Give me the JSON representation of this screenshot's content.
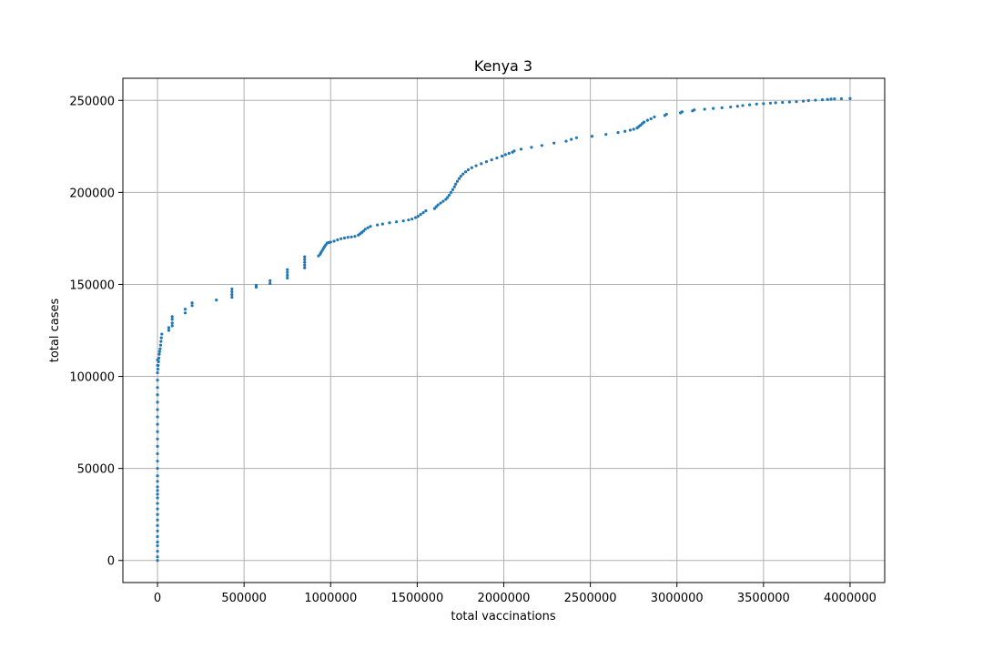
{
  "chart_data": {
    "type": "scatter",
    "title": "Kenya 3",
    "xlabel": "total vaccinations",
    "ylabel": "total cases",
    "xlim": [
      -200000,
      4200000
    ],
    "ylim": [
      -12000,
      262000
    ],
    "grid": true,
    "x_ticks": [
      0,
      500000,
      1000000,
      1500000,
      2000000,
      2500000,
      3000000,
      3500000,
      4000000
    ],
    "x_tick_labels": [
      "0",
      "500000",
      "1000000",
      "1500000",
      "2000000",
      "2500000",
      "3000000",
      "3500000",
      "4000000"
    ],
    "y_ticks": [
      0,
      50000,
      100000,
      150000,
      200000,
      250000
    ],
    "y_tick_labels": [
      "0",
      "50000",
      "100000",
      "150000",
      "200000",
      "250000"
    ],
    "color": "#1f77b4",
    "points": [
      [
        0,
        0
      ],
      [
        0,
        2000
      ],
      [
        0,
        5000
      ],
      [
        0,
        8000
      ],
      [
        0,
        10000
      ],
      [
        0,
        13000
      ],
      [
        0,
        16000
      ],
      [
        0,
        19000
      ],
      [
        0,
        22000
      ],
      [
        0,
        25000
      ],
      [
        0,
        28000
      ],
      [
        0,
        31000
      ],
      [
        0,
        34000
      ],
      [
        0,
        36000
      ],
      [
        0,
        38000
      ],
      [
        0,
        40000
      ],
      [
        0,
        43000
      ],
      [
        0,
        46000
      ],
      [
        0,
        50000
      ],
      [
        0,
        54000
      ],
      [
        0,
        58000
      ],
      [
        0,
        62000
      ],
      [
        0,
        66000
      ],
      [
        0,
        70000
      ],
      [
        0,
        74000
      ],
      [
        0,
        78000
      ],
      [
        0,
        82000
      ],
      [
        0,
        86000
      ],
      [
        0,
        90000
      ],
      [
        0,
        94000
      ],
      [
        0,
        98000
      ],
      [
        0,
        102000
      ],
      [
        0,
        106000
      ],
      [
        0,
        109000
      ],
      [
        2000,
        104000
      ],
      [
        4000,
        106000
      ],
      [
        6000,
        108000
      ],
      [
        8000,
        110000
      ],
      [
        10000,
        112000
      ],
      [
        12000,
        113500
      ],
      [
        15000,
        115000
      ],
      [
        18000,
        117000
      ],
      [
        20000,
        119000
      ],
      [
        22000,
        121000
      ],
      [
        25000,
        123000
      ],
      [
        65000,
        125000
      ],
      [
        65000,
        126500
      ],
      [
        85000,
        127500
      ],
      [
        85000,
        129000
      ],
      [
        85000,
        131000
      ],
      [
        85000,
        132500
      ],
      [
        160000,
        134500
      ],
      [
        160000,
        136500
      ],
      [
        200000,
        138500
      ],
      [
        200000,
        140000
      ],
      [
        340000,
        141500
      ],
      [
        430000,
        143000
      ],
      [
        430000,
        144500
      ],
      [
        430000,
        146000
      ],
      [
        430000,
        147500
      ],
      [
        570000,
        148500
      ],
      [
        570000,
        149500
      ],
      [
        650000,
        150500
      ],
      [
        650000,
        152000
      ],
      [
        750000,
        153500
      ],
      [
        750000,
        155000
      ],
      [
        750000,
        156500
      ],
      [
        750000,
        158000
      ],
      [
        850000,
        159000
      ],
      [
        850000,
        160500
      ],
      [
        850000,
        162000
      ],
      [
        850000,
        163500
      ],
      [
        850000,
        165000
      ],
      [
        930000,
        165500
      ],
      [
        940000,
        166500
      ],
      [
        945000,
        167500
      ],
      [
        952000,
        168500
      ],
      [
        958000,
        169500
      ],
      [
        965000,
        170500
      ],
      [
        972000,
        171500
      ],
      [
        980000,
        172500
      ],
      [
        990000,
        172800
      ],
      [
        1000000,
        173000
      ],
      [
        1020000,
        173500
      ],
      [
        1040000,
        174200
      ],
      [
        1060000,
        174800
      ],
      [
        1080000,
        175200
      ],
      [
        1100000,
        175600
      ],
      [
        1120000,
        175800
      ],
      [
        1140000,
        176100
      ],
      [
        1160000,
        176800
      ],
      [
        1170000,
        177500
      ],
      [
        1180000,
        178300
      ],
      [
        1190000,
        179000
      ],
      [
        1200000,
        180000
      ],
      [
        1215000,
        180800
      ],
      [
        1230000,
        181500
      ],
      [
        1270000,
        182300
      ],
      [
        1300000,
        182800
      ],
      [
        1340000,
        183500
      ],
      [
        1380000,
        184000
      ],
      [
        1420000,
        184500
      ],
      [
        1450000,
        185000
      ],
      [
        1470000,
        185500
      ],
      [
        1490000,
        186300
      ],
      [
        1505000,
        187000
      ],
      [
        1520000,
        188000
      ],
      [
        1535000,
        189000
      ],
      [
        1550000,
        190000
      ],
      [
        1600000,
        191200
      ],
      [
        1610000,
        192200
      ],
      [
        1620000,
        193200
      ],
      [
        1635000,
        194200
      ],
      [
        1650000,
        195200
      ],
      [
        1665000,
        196200
      ],
      [
        1675000,
        197200
      ],
      [
        1685000,
        198500
      ],
      [
        1695000,
        200000
      ],
      [
        1705000,
        201500
      ],
      [
        1715000,
        203000
      ],
      [
        1722000,
        204500
      ],
      [
        1732000,
        206000
      ],
      [
        1742000,
        207500
      ],
      [
        1752000,
        208800
      ],
      [
        1765000,
        210000
      ],
      [
        1780000,
        211200
      ],
      [
        1795000,
        212300
      ],
      [
        1815000,
        213400
      ],
      [
        1840000,
        214500
      ],
      [
        1870000,
        215600
      ],
      [
        1900000,
        216700
      ],
      [
        1930000,
        217700
      ],
      [
        1960000,
        218700
      ],
      [
        1990000,
        219700
      ],
      [
        2010000,
        220500
      ],
      [
        2030000,
        221200
      ],
      [
        2050000,
        221800
      ],
      [
        2060000,
        222500
      ],
      [
        2100000,
        223500
      ],
      [
        2160000,
        224500
      ],
      [
        2220000,
        225500
      ],
      [
        2290000,
        226800
      ],
      [
        2360000,
        227800
      ],
      [
        2390000,
        228800
      ],
      [
        2420000,
        229700
      ],
      [
        2510000,
        230500
      ],
      [
        2590000,
        231500
      ],
      [
        2660000,
        232500
      ],
      [
        2700000,
        233200
      ],
      [
        2730000,
        233800
      ],
      [
        2750000,
        234300
      ],
      [
        2770000,
        235000
      ],
      [
        2780000,
        235800
      ],
      [
        2790000,
        236500
      ],
      [
        2800000,
        237400
      ],
      [
        2810000,
        238200
      ],
      [
        2830000,
        239200
      ],
      [
        2850000,
        240000
      ],
      [
        2870000,
        241000
      ],
      [
        2930000,
        241800
      ],
      [
        2940000,
        242500
      ],
      [
        3020000,
        243200
      ],
      [
        3030000,
        243800
      ],
      [
        3090000,
        244300
      ],
      [
        3100000,
        244800
      ],
      [
        3160000,
        245200
      ],
      [
        3210000,
        245600
      ],
      [
        3260000,
        246000
      ],
      [
        3310000,
        246400
      ],
      [
        3350000,
        246800
      ],
      [
        3380000,
        247200
      ],
      [
        3420000,
        247600
      ],
      [
        3460000,
        248000
      ],
      [
        3500000,
        248200
      ],
      [
        3540000,
        248500
      ],
      [
        3570000,
        248700
      ],
      [
        3610000,
        248900
      ],
      [
        3650000,
        249100
      ],
      [
        3690000,
        249300
      ],
      [
        3730000,
        249600
      ],
      [
        3760000,
        249900
      ],
      [
        3800000,
        250100
      ],
      [
        3840000,
        250300
      ],
      [
        3870000,
        250500
      ],
      [
        3890000,
        250700
      ],
      [
        3910000,
        250800
      ],
      [
        3950000,
        250900
      ],
      [
        4000000,
        251000
      ]
    ]
  }
}
